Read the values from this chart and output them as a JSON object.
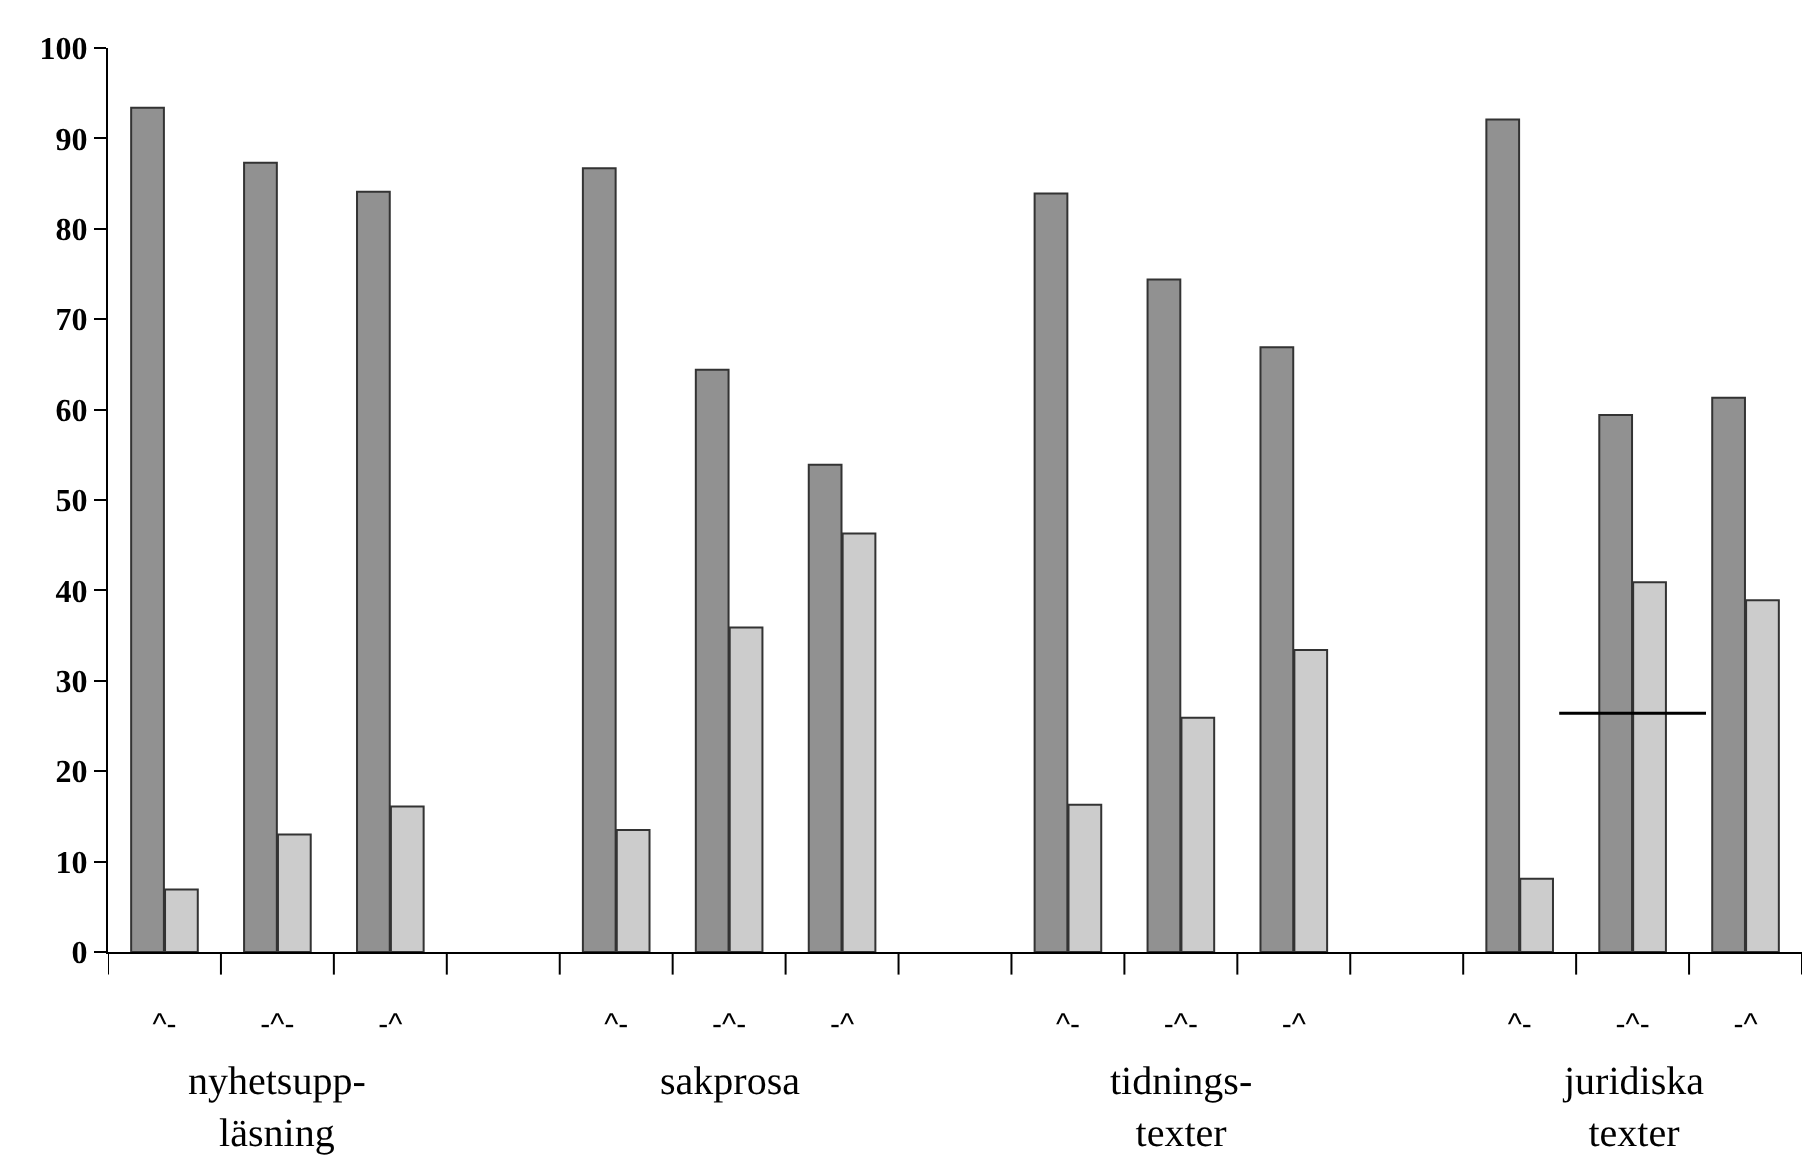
{
  "chart_data": {
    "type": "bar",
    "categories": [
      "^-",
      "-^-",
      "-^",
      null,
      "^-",
      "-^-",
      "-^",
      null,
      "^-",
      "-^-",
      "-^",
      null,
      "^-",
      "-^-",
      "-^"
    ],
    "series": [
      {
        "color": "#919191",
        "values": [
          93.4,
          87.3,
          84.1,
          null,
          86.7,
          64.4,
          53.9,
          null,
          83.9,
          74.4,
          66.9,
          null,
          92.1,
          59.4,
          61.3
        ]
      },
      {
        "color": "#cccccc",
        "values": [
          6.9,
          13.0,
          16.1,
          null,
          13.5,
          35.9,
          46.3,
          null,
          16.3,
          25.9,
          33.4,
          null,
          8.1,
          40.9,
          38.9
        ]
      }
    ],
    "ref_lines": [
      {
        "axis": "y",
        "value": 26.4,
        "color": "#000000"
      }
    ],
    "ylim": [
      0,
      100
    ],
    "yticks": [
      0,
      10,
      20,
      30,
      40,
      50,
      60,
      70,
      80,
      90,
      100
    ],
    "annotations": [
      "nyhetsupp-\nläsning",
      "sakprosa",
      "tidnings-\ntexter",
      "juridiska\ntexter"
    ]
  }
}
